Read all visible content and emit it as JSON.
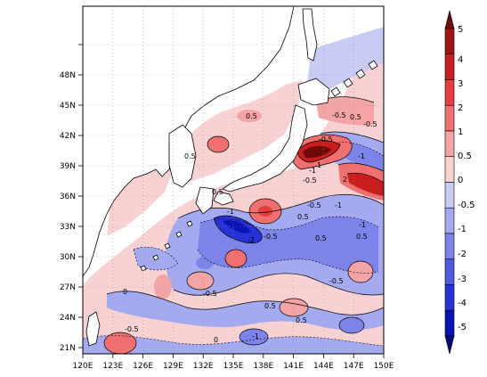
{
  "map": {
    "lon_labels": [
      "120E",
      "123E",
      "126E",
      "129E",
      "132E",
      "135E",
      "138E",
      "141E",
      "144E",
      "147E",
      "150E"
    ],
    "lat_labels": [
      "21N",
      "24N",
      "27N",
      "30N",
      "33N",
      "36N",
      "39N",
      "42N",
      "45N",
      "48N"
    ],
    "contour_labels": [
      "0.5",
      "-0.5",
      "0.5",
      "-0.5",
      "-0.5",
      "0.5",
      "-1",
      "1",
      "2",
      "-1",
      "-0.5",
      "0.5",
      "-1",
      "-0.5",
      "-1",
      "-2",
      "-0.5",
      "0.5",
      "-1",
      "0.5",
      "0",
      "-0.5",
      "-0.5",
      "-0.5",
      "0.5",
      "0",
      "-1",
      "0.5",
      "0.5"
    ]
  },
  "colorbar": {
    "labels": [
      "5",
      "4",
      "3",
      "2",
      "1",
      "0.5",
      "0",
      "-0.5",
      "-1",
      "-2",
      "-3",
      "-4",
      "-5"
    ],
    "colors": [
      "#6e0a0a",
      "#a01414",
      "#c81e1e",
      "#e63c3c",
      "#f07070",
      "#f4a4a4",
      "#f8d2d2",
      "#c8ccf4",
      "#a4aaf0",
      "#7c84ea",
      "#4e58e0",
      "#2832d4",
      "#0a14b4",
      "#00087c"
    ]
  }
}
